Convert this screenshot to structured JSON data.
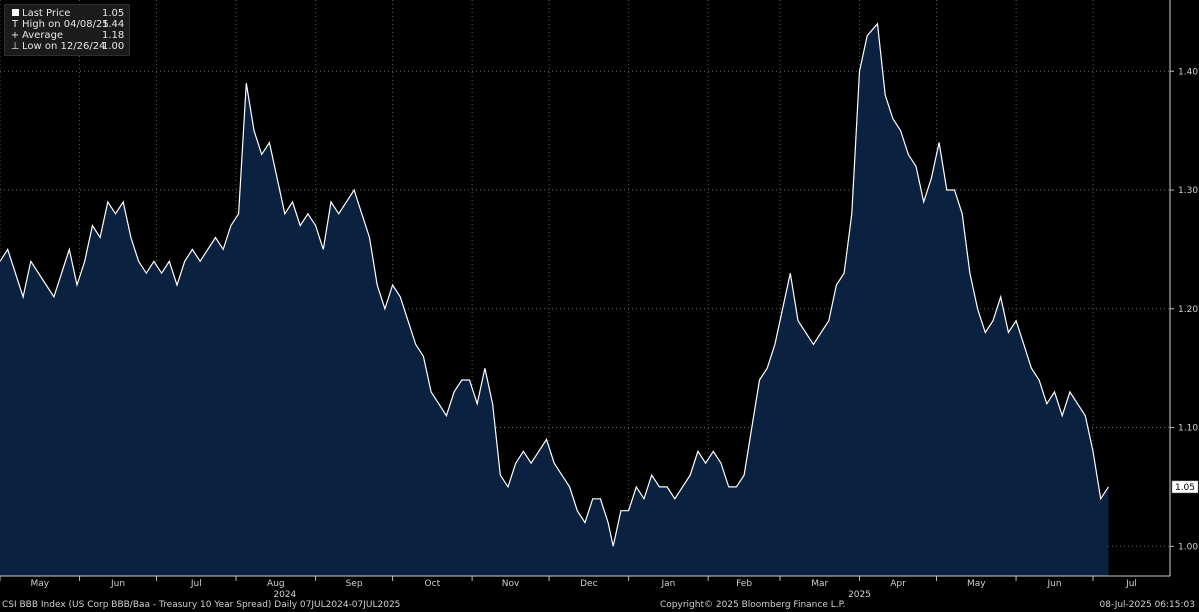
{
  "chart_data": {
    "type": "area",
    "title": "CSI BBB Index (US Corp BBB/Baa - Treasury 10 Year Spread)",
    "x_start": "2024-05-01",
    "x_end": "2025-07-31",
    "ylim": [
      0.975,
      1.46
    ],
    "y_ticks": [
      "1.00",
      "1.10",
      "1.20",
      "1.30",
      "1.40"
    ],
    "y_tick_values": [
      1.0,
      1.1,
      1.2,
      1.3,
      1.4
    ],
    "month_labels": [
      "May",
      "Jun",
      "Jul",
      "Aug",
      "Sep",
      "Oct",
      "Nov",
      "Dec",
      "Jan",
      "Feb",
      "Mar",
      "Apr",
      "May",
      "Jun",
      "Jul"
    ],
    "month_dates": [
      "2024-05-01",
      "2024-06-01",
      "2024-07-01",
      "2024-08-01",
      "2024-09-01",
      "2024-10-01",
      "2024-11-01",
      "2024-12-01",
      "2025-01-01",
      "2025-02-01",
      "2025-03-01",
      "2025-04-01",
      "2025-05-01",
      "2025-06-01",
      "2025-07-01"
    ],
    "year_labels": [
      "2024",
      "2025"
    ],
    "year_label_dates": [
      "2024-08-20",
      "2025-04-01"
    ],
    "grid": true,
    "legend_position": "top-left",
    "last_price_label": "1.05",
    "series": [
      {
        "name": "Last Price",
        "color": "#ffffff",
        "fill": "#0a2140",
        "points": [
          [
            "2024-05-01",
            1.24
          ],
          [
            "2024-05-04",
            1.25
          ],
          [
            "2024-05-07",
            1.23
          ],
          [
            "2024-05-10",
            1.21
          ],
          [
            "2024-05-13",
            1.24
          ],
          [
            "2024-05-16",
            1.23
          ],
          [
            "2024-05-19",
            1.22
          ],
          [
            "2024-05-22",
            1.21
          ],
          [
            "2024-05-25",
            1.23
          ],
          [
            "2024-05-28",
            1.25
          ],
          [
            "2024-05-31",
            1.22
          ],
          [
            "2024-06-03",
            1.24
          ],
          [
            "2024-06-06",
            1.27
          ],
          [
            "2024-06-09",
            1.26
          ],
          [
            "2024-06-12",
            1.29
          ],
          [
            "2024-06-15",
            1.28
          ],
          [
            "2024-06-18",
            1.29
          ],
          [
            "2024-06-21",
            1.26
          ],
          [
            "2024-06-24",
            1.24
          ],
          [
            "2024-06-27",
            1.23
          ],
          [
            "2024-06-30",
            1.24
          ],
          [
            "2024-07-03",
            1.23
          ],
          [
            "2024-07-06",
            1.24
          ],
          [
            "2024-07-09",
            1.22
          ],
          [
            "2024-07-12",
            1.24
          ],
          [
            "2024-07-15",
            1.25
          ],
          [
            "2024-07-18",
            1.24
          ],
          [
            "2024-07-21",
            1.25
          ],
          [
            "2024-07-24",
            1.26
          ],
          [
            "2024-07-27",
            1.25
          ],
          [
            "2024-07-30",
            1.27
          ],
          [
            "2024-08-02",
            1.28
          ],
          [
            "2024-08-05",
            1.39
          ],
          [
            "2024-08-08",
            1.35
          ],
          [
            "2024-08-11",
            1.33
          ],
          [
            "2024-08-14",
            1.34
          ],
          [
            "2024-08-17",
            1.31
          ],
          [
            "2024-08-20",
            1.28
          ],
          [
            "2024-08-23",
            1.29
          ],
          [
            "2024-08-26",
            1.27
          ],
          [
            "2024-08-29",
            1.28
          ],
          [
            "2024-09-01",
            1.27
          ],
          [
            "2024-09-04",
            1.25
          ],
          [
            "2024-09-07",
            1.29
          ],
          [
            "2024-09-10",
            1.28
          ],
          [
            "2024-09-13",
            1.29
          ],
          [
            "2024-09-16",
            1.3
          ],
          [
            "2024-09-19",
            1.28
          ],
          [
            "2024-09-22",
            1.26
          ],
          [
            "2024-09-25",
            1.22
          ],
          [
            "2024-09-28",
            1.2
          ],
          [
            "2024-10-01",
            1.22
          ],
          [
            "2024-10-04",
            1.21
          ],
          [
            "2024-10-07",
            1.19
          ],
          [
            "2024-10-10",
            1.17
          ],
          [
            "2024-10-13",
            1.16
          ],
          [
            "2024-10-16",
            1.13
          ],
          [
            "2024-10-19",
            1.12
          ],
          [
            "2024-10-22",
            1.11
          ],
          [
            "2024-10-25",
            1.13
          ],
          [
            "2024-10-28",
            1.14
          ],
          [
            "2024-10-31",
            1.14
          ],
          [
            "2024-11-03",
            1.12
          ],
          [
            "2024-11-06",
            1.15
          ],
          [
            "2024-11-09",
            1.12
          ],
          [
            "2024-11-12",
            1.06
          ],
          [
            "2024-11-15",
            1.05
          ],
          [
            "2024-11-18",
            1.07
          ],
          [
            "2024-11-21",
            1.08
          ],
          [
            "2024-11-24",
            1.07
          ],
          [
            "2024-11-27",
            1.08
          ],
          [
            "2024-11-30",
            1.09
          ],
          [
            "2024-12-03",
            1.07
          ],
          [
            "2024-12-06",
            1.06
          ],
          [
            "2024-12-09",
            1.05
          ],
          [
            "2024-12-12",
            1.03
          ],
          [
            "2024-12-15",
            1.02
          ],
          [
            "2024-12-18",
            1.04
          ],
          [
            "2024-12-21",
            1.04
          ],
          [
            "2024-12-24",
            1.02
          ],
          [
            "2024-12-26",
            1.0
          ],
          [
            "2024-12-29",
            1.03
          ],
          [
            "2025-01-01",
            1.03
          ],
          [
            "2025-01-04",
            1.05
          ],
          [
            "2025-01-07",
            1.04
          ],
          [
            "2025-01-10",
            1.06
          ],
          [
            "2025-01-13",
            1.05
          ],
          [
            "2025-01-16",
            1.05
          ],
          [
            "2025-01-19",
            1.04
          ],
          [
            "2025-01-22",
            1.05
          ],
          [
            "2025-01-25",
            1.06
          ],
          [
            "2025-01-28",
            1.08
          ],
          [
            "2025-01-31",
            1.07
          ],
          [
            "2025-02-03",
            1.08
          ],
          [
            "2025-02-06",
            1.07
          ],
          [
            "2025-02-09",
            1.05
          ],
          [
            "2025-02-12",
            1.05
          ],
          [
            "2025-02-15",
            1.06
          ],
          [
            "2025-02-18",
            1.1
          ],
          [
            "2025-02-21",
            1.14
          ],
          [
            "2025-02-24",
            1.15
          ],
          [
            "2025-02-27",
            1.17
          ],
          [
            "2025-03-02",
            1.2
          ],
          [
            "2025-03-05",
            1.23
          ],
          [
            "2025-03-08",
            1.19
          ],
          [
            "2025-03-11",
            1.18
          ],
          [
            "2025-03-14",
            1.17
          ],
          [
            "2025-03-17",
            1.18
          ],
          [
            "2025-03-20",
            1.19
          ],
          [
            "2025-03-23",
            1.22
          ],
          [
            "2025-03-26",
            1.23
          ],
          [
            "2025-03-29",
            1.28
          ],
          [
            "2025-04-01",
            1.4
          ],
          [
            "2025-04-04",
            1.43
          ],
          [
            "2025-04-08",
            1.44
          ],
          [
            "2025-04-11",
            1.38
          ],
          [
            "2025-04-14",
            1.36
          ],
          [
            "2025-04-17",
            1.35
          ],
          [
            "2025-04-20",
            1.33
          ],
          [
            "2025-04-23",
            1.32
          ],
          [
            "2025-04-26",
            1.29
          ],
          [
            "2025-04-29",
            1.31
          ],
          [
            "2025-05-02",
            1.34
          ],
          [
            "2025-05-05",
            1.3
          ],
          [
            "2025-05-08",
            1.3
          ],
          [
            "2025-05-11",
            1.28
          ],
          [
            "2025-05-14",
            1.23
          ],
          [
            "2025-05-17",
            1.2
          ],
          [
            "2025-05-20",
            1.18
          ],
          [
            "2025-05-23",
            1.19
          ],
          [
            "2025-05-26",
            1.21
          ],
          [
            "2025-05-29",
            1.18
          ],
          [
            "2025-06-01",
            1.19
          ],
          [
            "2025-06-04",
            1.17
          ],
          [
            "2025-06-07",
            1.15
          ],
          [
            "2025-06-10",
            1.14
          ],
          [
            "2025-06-13",
            1.12
          ],
          [
            "2025-06-16",
            1.13
          ],
          [
            "2025-06-19",
            1.11
          ],
          [
            "2025-06-22",
            1.13
          ],
          [
            "2025-06-25",
            1.12
          ],
          [
            "2025-06-28",
            1.11
          ],
          [
            "2025-07-01",
            1.08
          ],
          [
            "2025-07-04",
            1.04
          ],
          [
            "2025-07-07",
            1.05
          ]
        ]
      }
    ]
  },
  "legend": {
    "items": [
      {
        "icon": "square",
        "label": "Last Price",
        "value": "1.05"
      },
      {
        "icon": "T",
        "label": "High on 04/08/25",
        "value": "1.44"
      },
      {
        "icon": "+",
        "label": "Average",
        "value": "1.18"
      },
      {
        "icon": "⊥",
        "label": "Low on 12/26/24",
        "value": "1.00"
      }
    ]
  },
  "footer": {
    "left": "CSI BBB Index (US Corp BBB/Baa - Treasury 10 Year Spread)  Daily 07JUL2024-07JUL2025",
    "center": "Copyright© 2025 Bloomberg Finance L.P.",
    "right": "08-Jul-2025 06:15:03"
  }
}
